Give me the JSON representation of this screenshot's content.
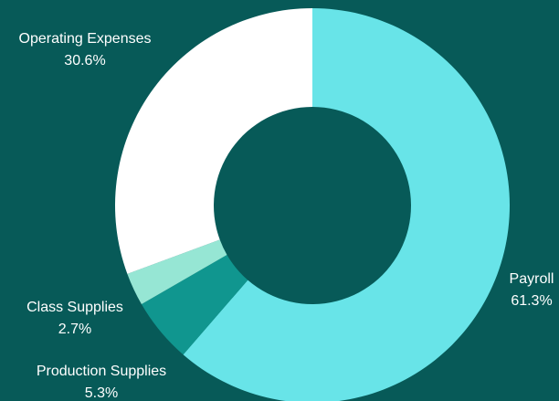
{
  "chart_data": {
    "type": "pie",
    "donut": true,
    "categories": [
      "Payroll",
      "Production Supplies",
      "Class Supplies",
      "Operating Expenses"
    ],
    "values": [
      61.3,
      5.3,
      2.7,
      30.6
    ],
    "value_labels": [
      "61.3%",
      "5.3%",
      "2.7%",
      "30.6%"
    ],
    "colors": [
      "#68e4e8",
      "#10968f",
      "#96e6d4",
      "#ffffff"
    ],
    "title": "",
    "legend": "none"
  },
  "style": {
    "background": "#075a58",
    "label_color": "#ffffff"
  }
}
